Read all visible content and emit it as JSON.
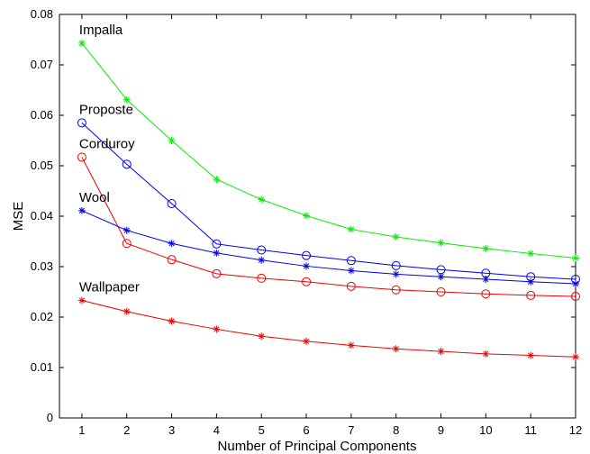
{
  "chart_data": {
    "type": "line",
    "title": "",
    "xlabel": "Number of Principal Components",
    "ylabel": "MSE",
    "xlim": [
      0.5,
      12
    ],
    "ylim": [
      0,
      0.08
    ],
    "x": [
      1,
      2,
      3,
      4,
      5,
      6,
      7,
      8,
      9,
      10,
      11,
      12
    ],
    "xticks": [
      "1",
      "2",
      "3",
      "4",
      "5",
      "6",
      "7",
      "8",
      "9",
      "10",
      "11",
      "12"
    ],
    "yticks": [
      "0",
      "0.01",
      "0.02",
      "0.03",
      "0.04",
      "0.05",
      "0.06",
      "0.07",
      "0.08"
    ],
    "grid": false,
    "legend": "none",
    "series": [
      {
        "name": "Impalla",
        "color": "#00ee00",
        "marker": "asterisk",
        "values": [
          0.0743,
          0.0631,
          0.055,
          0.0473,
          0.0433,
          0.0401,
          0.0374,
          0.0359,
          0.0347,
          0.0336,
          0.0326,
          0.0317
        ]
      },
      {
        "name": "Proposte",
        "color": "#0000ee",
        "marker": "circle",
        "values": [
          0.0585,
          0.0503,
          0.0425,
          0.0345,
          0.0333,
          0.0322,
          0.0312,
          0.0302,
          0.0294,
          0.0287,
          0.028,
          0.0275
        ]
      },
      {
        "name": "Corduroy",
        "color": "#ee0000",
        "marker": "circle",
        "values": [
          0.0517,
          0.0346,
          0.0314,
          0.0286,
          0.0277,
          0.027,
          0.0261,
          0.0254,
          0.025,
          0.0246,
          0.0243,
          0.0241
        ]
      },
      {
        "name": "Wool",
        "color": "#0000ee",
        "marker": "asterisk",
        "values": [
          0.0411,
          0.0372,
          0.0346,
          0.0327,
          0.0313,
          0.0301,
          0.0292,
          0.0285,
          0.028,
          0.0275,
          0.027,
          0.0266
        ]
      },
      {
        "name": "Wallpaper",
        "color": "#ee0000",
        "marker": "asterisk",
        "values": [
          0.0233,
          0.0211,
          0.0192,
          0.0176,
          0.0162,
          0.0152,
          0.0144,
          0.0137,
          0.0132,
          0.0127,
          0.0124,
          0.0121
        ]
      }
    ]
  }
}
